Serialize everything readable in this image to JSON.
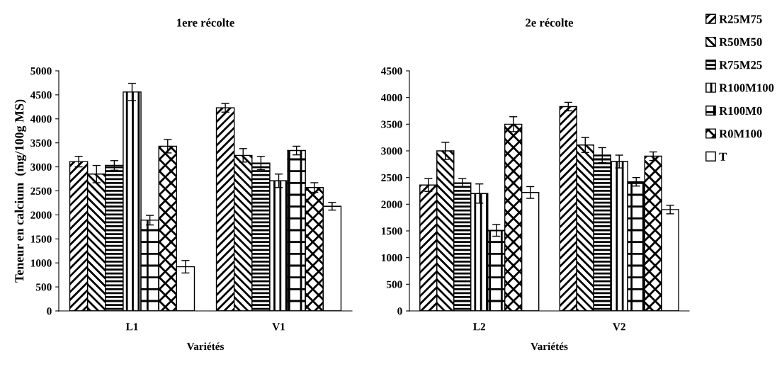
{
  "chart_data": [
    {
      "type": "bar",
      "title": "1ere récolte",
      "xlabel": "Variétés",
      "ylabel": "Teneur en calcium  (mg/100g MS)",
      "categories": [
        "L1",
        "V1"
      ],
      "ylim": [
        0,
        5000
      ],
      "yticks": [
        0,
        500,
        1000,
        1500,
        2000,
        2500,
        3000,
        3500,
        4000,
        4500,
        5000
      ],
      "grid": false,
      "legend": "top right",
      "series": [
        {
          "name": "R25M75",
          "color": "#000000",
          "values": [
            3110,
            4230
          ],
          "errors": [
            110,
            90
          ]
        },
        {
          "name": "R50M50",
          "color": "#000000",
          "values": [
            2850,
            3240
          ],
          "errors": [
            180,
            140
          ]
        },
        {
          "name": "R75M25",
          "color": "#000000",
          "values": [
            3030,
            3080
          ],
          "errors": [
            100,
            140
          ]
        },
        {
          "name": "R100M100",
          "color": "#000000",
          "values": [
            4560,
            2710
          ],
          "errors": [
            180,
            140
          ]
        },
        {
          "name": "R100M0",
          "color": "#000000",
          "values": [
            1890,
            3340
          ],
          "errors": [
            100,
            90
          ]
        },
        {
          "name": "R0M100",
          "color": "#000000",
          "values": [
            3430,
            2570
          ],
          "errors": [
            140,
            100
          ]
        },
        {
          "name": "T",
          "color": "#ffffff",
          "values": [
            920,
            2180
          ],
          "errors": [
            130,
            80
          ]
        }
      ]
    },
    {
      "type": "bar",
      "title": "2e récolte",
      "xlabel": "Variétés",
      "categories": [
        "L2",
        "V2"
      ],
      "ylim": [
        0,
        4500
      ],
      "yticks": [
        0,
        500,
        1000,
        1500,
        2000,
        2500,
        3000,
        3500,
        4000,
        4500
      ],
      "grid": false,
      "series": [
        {
          "color": "#000000",
          "values": [
            2360,
            3830
          ],
          "errors": [
            120,
            80
          ]
        },
        {
          "color": "#000000",
          "values": [
            3000,
            3110
          ],
          "errors": [
            160,
            140
          ]
        },
        {
          "color": "#000000",
          "values": [
            2400,
            2920
          ],
          "errors": [
            80,
            140
          ]
        },
        {
          "color": "#000000",
          "values": [
            2200,
            2800
          ],
          "errors": [
            180,
            120
          ]
        },
        {
          "color": "#000000",
          "values": [
            1510,
            2420
          ],
          "errors": [
            110,
            80
          ]
        },
        {
          "color": "#000000",
          "values": [
            3500,
            2900
          ],
          "errors": [
            140,
            80
          ]
        },
        {
          "color": "#ffffff",
          "values": [
            2220,
            1900
          ],
          "errors": [
            110,
            80
          ]
        }
      ]
    }
  ]
}
